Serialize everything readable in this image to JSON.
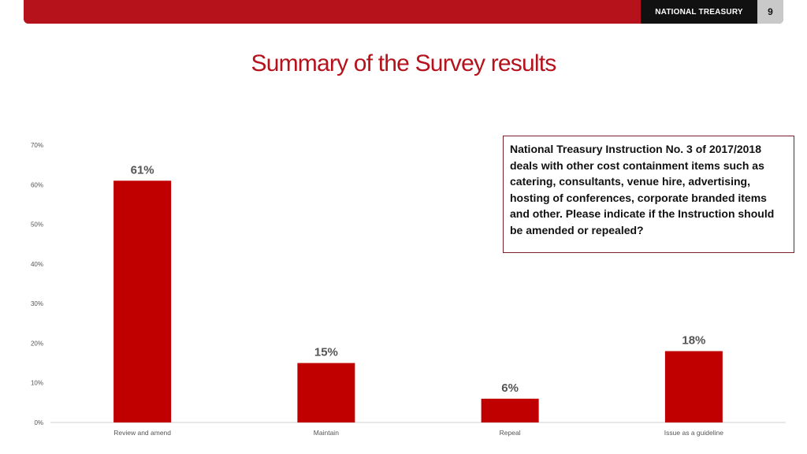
{
  "header": {
    "brand": "NATIONAL TREASURY",
    "page_number": "9"
  },
  "title": "Summary of the Survey results",
  "note": "National Treasury Instruction No. 3 of 2017/2018 deals with other cost containment items such as catering, consultants, venue hire, advertising, hosting of conferences, corporate branded items and other. Please indicate if the Instruction should be amended or repealed?",
  "colors": {
    "bar": "#c00000",
    "accent": "#b5121b"
  },
  "chart_data": {
    "type": "bar",
    "categories": [
      "Review and amend",
      "Maintain",
      "Repeal",
      "Issue as a guideline"
    ],
    "values": [
      61,
      15,
      6,
      18
    ],
    "data_labels": [
      "61%",
      "15%",
      "6%",
      "18%"
    ],
    "ylim": [
      0,
      70
    ],
    "yticks": [
      0,
      10,
      20,
      30,
      40,
      50,
      60,
      70
    ],
    "ytick_labels": [
      "0%",
      "10%",
      "20%",
      "30%",
      "40%",
      "50%",
      "60%",
      "70%"
    ],
    "grid": false,
    "legend": "none"
  }
}
